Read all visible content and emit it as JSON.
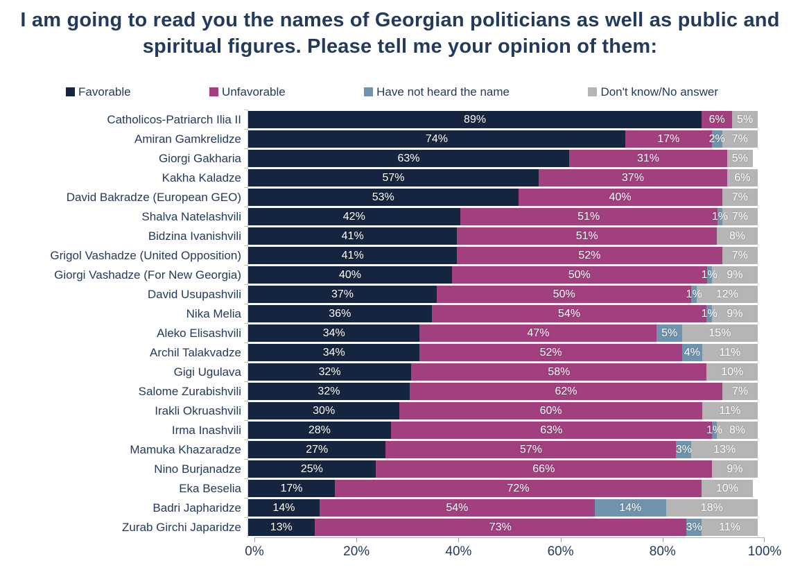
{
  "title": "I am going to read you the names of Georgian politicians as well as public and spiritual figures. Please tell me your opinion of them:",
  "legend": [
    {
      "label": "Favorable",
      "color": "#16253f"
    },
    {
      "label": "Unfavorable",
      "color": "#a23f7e"
    },
    {
      "label": "Have not heard the name",
      "color": "#6f93ac"
    },
    {
      "label": "Don't know/No answer",
      "color": "#b5b5b6"
    }
  ],
  "chart_data": {
    "type": "bar",
    "orientation": "horizontal",
    "stacked": true,
    "title": "I am going to read you the names of Georgian politicians as well as public and spiritual figures. Please tell me your opinion of them:",
    "categories": [
      "Catholicos-Patriarch Ilia II",
      "Amiran Gamkrelidze",
      "Giorgi Gakharia",
      "Kakha Kaladze",
      "David Bakradze (European GEO)",
      "Shalva Natelashvili",
      "Bidzina Ivanishvili",
      "Grigol Vashadze (United Opposition)",
      "Giorgi Vashadze (For New Georgia)",
      "David Usupashvili",
      "Nika Melia",
      "Aleko Elisashvili",
      "Archil Talakvadze",
      "Gigi Ugulava",
      "Salome Zurabishvili",
      "Irakli Okruashvili",
      "Irma Inashvili",
      "Mamuka Khazaradze",
      "Nino Burjanadze",
      "Eka Beselia",
      "Badri Japharidze",
      "Zurab Girchi Japaridze"
    ],
    "series": [
      {
        "name": "Favorable",
        "key": "favorable",
        "color": "#16253f",
        "values": [
          89,
          74,
          63,
          57,
          53,
          42,
          41,
          41,
          40,
          37,
          36,
          34,
          34,
          32,
          32,
          30,
          28,
          27,
          25,
          17,
          14,
          13
        ]
      },
      {
        "name": "Unfavorable",
        "key": "unfavorable",
        "color": "#a23f7e",
        "values": [
          6,
          17,
          31,
          37,
          40,
          51,
          51,
          52,
          50,
          50,
          54,
          47,
          52,
          58,
          62,
          60,
          63,
          57,
          66,
          72,
          54,
          73
        ]
      },
      {
        "name": "Have not heard the name",
        "key": "have-not-heard",
        "color": "#6f93ac",
        "values": [
          0,
          2,
          0,
          0,
          0,
          1,
          0,
          0,
          1,
          1,
          1,
          5,
          4,
          0,
          0,
          0,
          1,
          3,
          0,
          0,
          14,
          3
        ]
      },
      {
        "name": "Don't know/No answer",
        "key": "dont-know",
        "color": "#b5b5b6",
        "values": [
          5,
          7,
          5,
          6,
          7,
          7,
          8,
          7,
          9,
          12,
          9,
          15,
          11,
          10,
          7,
          11,
          8,
          13,
          9,
          10,
          18,
          11
        ]
      }
    ],
    "value_suffix": "%",
    "xlim": [
      0,
      100
    ],
    "x_ticks": [
      "0%",
      "20%",
      "40%",
      "60%",
      "80%",
      "100%"
    ],
    "legend_position": "top",
    "grid": false
  }
}
